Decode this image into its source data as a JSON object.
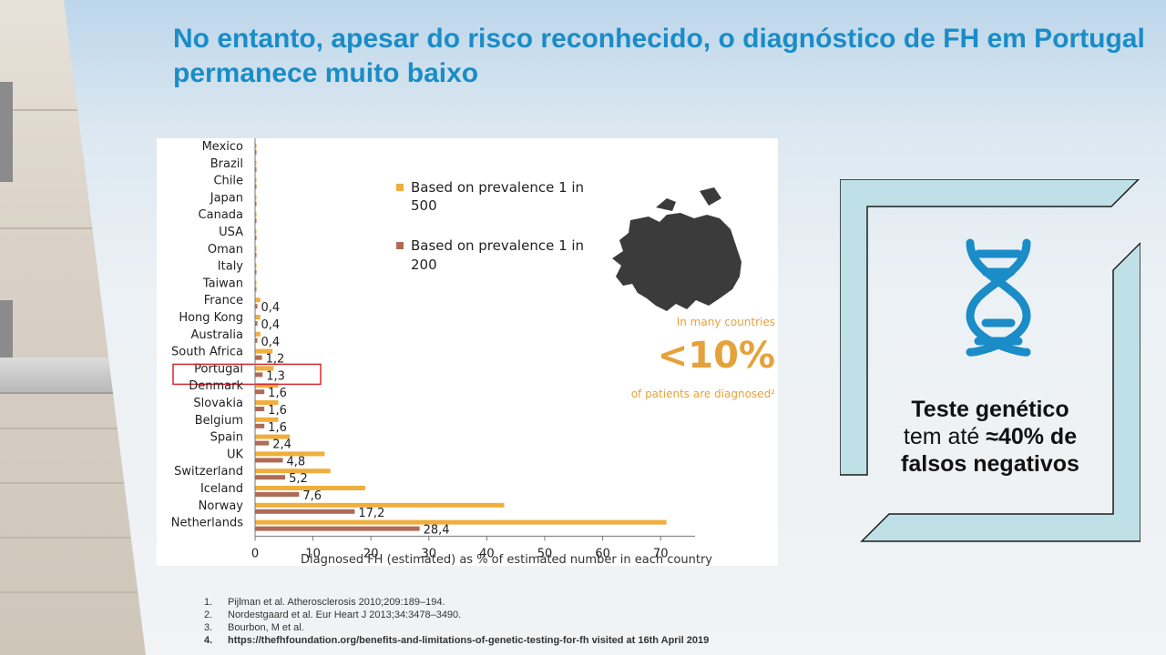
{
  "title": "No entanto, apesar do risco reconhecido, o diagnóstico de FH em Portugal permanece muito baixo",
  "chart_data": {
    "type": "bar",
    "orientation": "horizontal",
    "categories": [
      "Mexico",
      "Brazil",
      "Chile",
      "Japan",
      "Canada",
      "USA",
      "Oman",
      "Italy",
      "Taiwan",
      "France",
      "Hong Kong",
      "Australia",
      "South Africa",
      "Portugal",
      "Denmark",
      "Slovakia",
      "Belgium",
      "Spain",
      "UK",
      "Switzerland",
      "Iceland",
      "Norway",
      "Netherlands"
    ],
    "series": [
      {
        "name": "Based on prevalence 1 in 500",
        "color": "#f0ae3c",
        "values": [
          0.2,
          0.2,
          0.2,
          0.2,
          0.2,
          0.2,
          0.2,
          0.2,
          0.2,
          0.9,
          0.9,
          0.9,
          3,
          3.2,
          4,
          4,
          4,
          6,
          12,
          13,
          19,
          43,
          71
        ]
      },
      {
        "name": "Based on prevalence 1 in 200",
        "color": "#b06a55",
        "values": [
          0.1,
          0.1,
          0.1,
          0.1,
          0.1,
          0.1,
          0.1,
          0.1,
          0.1,
          0.4,
          0.4,
          0.4,
          1.2,
          1.3,
          1.6,
          1.6,
          1.6,
          2.4,
          4.8,
          5.2,
          7.6,
          17.2,
          28.4
        ]
      }
    ],
    "data_labels": [
      "",
      "",
      "",
      "",
      "",
      "",
      "",
      "",
      "",
      "0,4",
      "0,4",
      "0,4",
      "1,2",
      "1,3",
      "1,6",
      "1,6",
      "1,6",
      "2,4",
      "4,8",
      "5,2",
      "7,6",
      "17,2",
      "28,4"
    ],
    "xticks": [
      "0",
      "10",
      "20",
      "30",
      "40",
      "50",
      "60",
      "70"
    ],
    "xlim": [
      0,
      75
    ],
    "xlabel": "Diagnosed FH (estimated) as % of estimated number in each country",
    "highlight": "Portugal",
    "highlight_color": "#d7282f"
  },
  "legend": [
    {
      "line1": "Based on prevalence 1 in",
      "line2": "500",
      "color": "#f0ae3c"
    },
    {
      "line1": "Based on prevalence 1 in",
      "line2": "200",
      "color": "#b06a55"
    }
  ],
  "callout": {
    "top": "In many countries",
    "big": "<10%",
    "bottom": "of patients are diagnosed²",
    "color": "#e7a13a"
  },
  "card": {
    "line1": "Teste genético",
    "line2_pre": "tem até ",
    "line2_bold": "≈40% de",
    "line3": "falsos negativos",
    "frame_color": "#bfe0e6",
    "icon": "dna-icon",
    "icon_color": "#1a8cc7"
  },
  "references": [
    {
      "num": "1.",
      "text": "Pijlman et al. Atherosclerosis 2010;209:189–194."
    },
    {
      "num": "2.",
      "text": "Nordestgaard et al. Eur Heart J 2013;34:3478–3490."
    },
    {
      "num": "3.",
      "text": "Bourbon, M et al."
    },
    {
      "num": "4.",
      "text": "https://thefhfoundation.org/benefits-and-limitations-of-genetic-testing-for-fh visited at 16th April 2019",
      "bold": true
    }
  ]
}
